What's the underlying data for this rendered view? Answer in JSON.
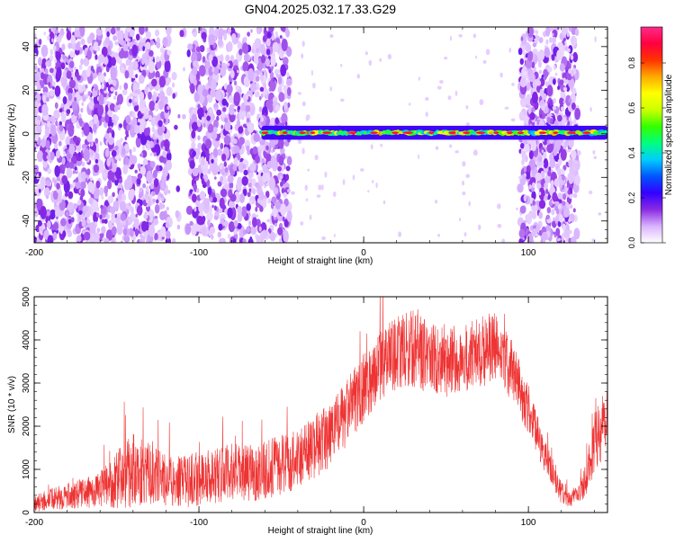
{
  "page_title": "GN04.2025.032.17.33.G29",
  "chart_data": [
    {
      "type": "heatmap",
      "title": "GN04.2025.032.17.33.G29",
      "xlabel": "Height of straight line (km)",
      "ylabel": "Frequency (Hz)",
      "xlim": [
        -200,
        148
      ],
      "ylim": [
        -50,
        49
      ],
      "xticks": [
        -200,
        -100,
        0,
        100
      ],
      "xtick_labels": [
        "-200",
        "-100",
        "0",
        "100"
      ],
      "yticks": [
        -40,
        -20,
        0,
        20,
        40
      ],
      "ytick_labels": [
        "-40",
        "-20",
        "0",
        "20",
        "40"
      ],
      "colorbar": {
        "label": "Normalized spectral amplitude",
        "range": [
          0,
          0.96
        ],
        "ticks": [
          0,
          0.2,
          0.4,
          0.6,
          0.8
        ],
        "tick_labels": [
          "0.0",
          "0.2",
          "0.4",
          "0.6",
          "0.8"
        ],
        "colors": [
          "#ffffff",
          "#d9b3ff",
          "#8a2be2",
          "#3300ff",
          "#0055ff",
          "#00ccff",
          "#00ff80",
          "#33ff00",
          "#ccff00",
          "#ffff00",
          "#ffaa00",
          "#ff3300",
          "#ff0040",
          "#ff2a8a"
        ]
      },
      "features": {
        "signal_line": {
          "frequency_hz": 0.5,
          "x_start": -62,
          "x_end": 148,
          "peak_amplitude": 0.9
        },
        "noise_regions": [
          {
            "x_start": -200,
            "x_end": -45,
            "density": "high"
          },
          {
            "x_start": 95,
            "x_end": 130,
            "density": "medium"
          }
        ],
        "gaps": [
          {
            "x_start": -118,
            "x_end": -105
          }
        ]
      }
    },
    {
      "type": "line",
      "xlabel": "Height of straight line (km)",
      "ylabel": "SNR (10 * v/v)",
      "xlim": [
        -200,
        148
      ],
      "ylim": [
        0,
        5000
      ],
      "xticks": [
        -200,
        -100,
        0,
        100
      ],
      "xtick_labels": [
        "-200",
        "-100",
        "0",
        "100"
      ],
      "yticks": [
        0,
        1000,
        2000,
        3000,
        4000,
        5000
      ],
      "ytick_labels": [
        "0",
        "1000",
        "2000",
        "3000",
        "4000",
        "5000"
      ],
      "color": "#ee3333",
      "series": [
        {
          "x": [
            -200,
            -190,
            -180,
            -170,
            -160,
            -150,
            -145,
            -140,
            -130,
            -120,
            -110,
            -100,
            -90,
            -80,
            -70,
            -60,
            -50,
            -40,
            -30,
            -20,
            -10,
            0,
            10,
            20,
            30,
            40,
            50,
            60,
            70,
            80,
            90,
            100,
            110,
            120,
            125,
            130,
            135,
            140,
            145,
            148
          ],
          "y": [
            200,
            300,
            380,
            450,
            520,
            750,
            900,
            1000,
            900,
            750,
            700,
            800,
            850,
            950,
            900,
            1000,
            1100,
            1250,
            1500,
            1800,
            2300,
            2900,
            3400,
            3700,
            3800,
            3600,
            3450,
            3500,
            3750,
            3800,
            3300,
            2400,
            1300,
            450,
            300,
            400,
            800,
            1600,
            2100,
            2300
          ],
          "noise_amplitude": [
            200,
            250,
            300,
            350,
            400,
            650,
            800,
            900,
            700,
            600,
            600,
            650,
            650,
            650,
            650,
            700,
            700,
            700,
            750,
            750,
            800,
            800,
            800,
            850,
            900,
            850,
            800,
            800,
            850,
            850,
            700,
            600,
            400,
            250,
            200,
            250,
            400,
            700,
            900,
            800
          ]
        }
      ]
    }
  ]
}
